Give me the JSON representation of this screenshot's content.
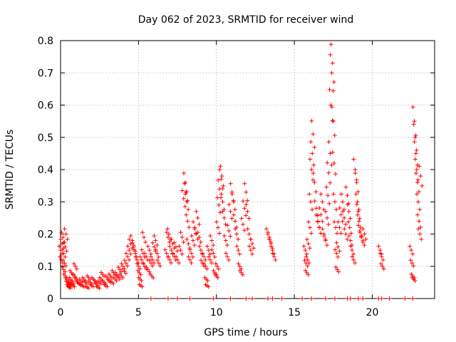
{
  "chart_data": {
    "type": "scatter",
    "title": "Day 062 of 2023, SRMTID for receiver wind",
    "xlabel": "GPS time / hours",
    "ylabel": "SRMTID / TECUs",
    "xlim": [
      0,
      24
    ],
    "ylim": [
      0,
      0.8
    ],
    "xticks": [
      0,
      5,
      10,
      15,
      20
    ],
    "yticks": [
      0,
      0.1,
      0.2,
      0.3,
      0.4,
      0.5,
      0.6,
      0.7,
      0.8
    ],
    "xtick_labels": [
      "0",
      "5",
      "10",
      "15",
      "20"
    ],
    "ytick_labels": [
      "0",
      "0.1",
      "0.2",
      "0.3",
      "0.4",
      "0.5",
      "0.6",
      "0.7",
      "0.8"
    ],
    "grid": true,
    "marker": "+",
    "series_color": "#ff0000",
    "points": [
      [
        0.0,
        0.15
      ],
      [
        0.05,
        0.12
      ],
      [
        0.1,
        0.17
      ],
      [
        0.15,
        0.19
      ],
      [
        0.2,
        0.14
      ],
      [
        0.25,
        0.11
      ],
      [
        0.3,
        0.16
      ],
      [
        0.35,
        0.2
      ],
      [
        0.2,
        0.09
      ],
      [
        0.3,
        0.07
      ],
      [
        0.4,
        0.06
      ],
      [
        0.45,
        0.05
      ],
      [
        0.5,
        0.04
      ],
      [
        0.55,
        0.035
      ],
      [
        0.6,
        0.045
      ],
      [
        0.65,
        0.06
      ],
      [
        0.7,
        0.08
      ],
      [
        0.75,
        0.05
      ],
      [
        0.8,
        0.04
      ],
      [
        0.9,
        0.07
      ],
      [
        0.95,
        0.1
      ],
      [
        1.0,
        0.06
      ],
      [
        1.1,
        0.05
      ],
      [
        1.2,
        0.045
      ],
      [
        1.3,
        0.055
      ],
      [
        1.4,
        0.04
      ],
      [
        1.5,
        0.06
      ],
      [
        1.6,
        0.05
      ],
      [
        1.7,
        0.035
      ],
      [
        1.8,
        0.065
      ],
      [
        1.9,
        0.05
      ],
      [
        2.0,
        0.04
      ],
      [
        2.1,
        0.06
      ],
      [
        2.2,
        0.055
      ],
      [
        2.3,
        0.045
      ],
      [
        2.4,
        0.035
      ],
      [
        2.5,
        0.05
      ],
      [
        2.6,
        0.06
      ],
      [
        2.7,
        0.075
      ],
      [
        2.8,
        0.05
      ],
      [
        2.9,
        0.04
      ],
      [
        3.0,
        0.065
      ],
      [
        3.1,
        0.055
      ],
      [
        3.2,
        0.07
      ],
      [
        3.3,
        0.05
      ],
      [
        3.4,
        0.08
      ],
      [
        3.5,
        0.06
      ],
      [
        3.6,
        0.075
      ],
      [
        3.7,
        0.065
      ],
      [
        3.8,
        0.09
      ],
      [
        3.9,
        0.07
      ],
      [
        4.0,
        0.1
      ],
      [
        4.1,
        0.085
      ],
      [
        4.2,
        0.11
      ],
      [
        4.3,
        0.13
      ],
      [
        4.4,
        0.15
      ],
      [
        4.5,
        0.17
      ],
      [
        4.6,
        0.18
      ],
      [
        4.7,
        0.16
      ],
      [
        4.8,
        0.14
      ],
      [
        4.9,
        0.12
      ],
      [
        5.0,
        0.1
      ],
      [
        5.05,
        0.08
      ],
      [
        5.1,
        0.06
      ],
      [
        5.15,
        0.04
      ],
      [
        5.2,
        0.12
      ],
      [
        5.3,
        0.14
      ],
      [
        5.35,
        0.19
      ],
      [
        5.4,
        0.1
      ],
      [
        5.5,
        0.13
      ],
      [
        5.6,
        0.09
      ],
      [
        5.7,
        0.15
      ],
      [
        5.8,
        0.11
      ],
      [
        5.85,
        0.07
      ],
      [
        5.9,
        0.12
      ],
      [
        6.0,
        0.16
      ],
      [
        6.1,
        0.18
      ],
      [
        6.2,
        0.14
      ],
      [
        6.3,
        0.11
      ],
      [
        6.8,
        0.14
      ],
      [
        6.9,
        0.19
      ],
      [
        6.95,
        0.2
      ],
      [
        7.0,
        0.12
      ],
      [
        7.1,
        0.15
      ],
      [
        7.2,
        0.17
      ],
      [
        7.3,
        0.13
      ],
      [
        7.4,
        0.16
      ],
      [
        7.5,
        0.12
      ],
      [
        7.7,
        0.15
      ],
      [
        7.8,
        0.19
      ],
      [
        7.9,
        0.31
      ],
      [
        8.0,
        0.36
      ],
      [
        8.05,
        0.33
      ],
      [
        8.1,
        0.3
      ],
      [
        8.15,
        0.24
      ],
      [
        8.2,
        0.17
      ],
      [
        8.3,
        0.12
      ],
      [
        8.4,
        0.14
      ],
      [
        8.5,
        0.18
      ],
      [
        8.6,
        0.22
      ],
      [
        8.7,
        0.2
      ],
      [
        8.8,
        0.25
      ],
      [
        8.9,
        0.19
      ],
      [
        9.0,
        0.15
      ],
      [
        9.1,
        0.11
      ],
      [
        9.2,
        0.13
      ],
      [
        9.3,
        0.1
      ],
      [
        9.35,
        0.06
      ],
      [
        9.4,
        0.04
      ],
      [
        9.5,
        0.15
      ],
      [
        9.6,
        0.12
      ],
      [
        9.7,
        0.18
      ],
      [
        9.8,
        0.14
      ],
      [
        9.9,
        0.08
      ],
      [
        10.0,
        0.07
      ],
      [
        10.05,
        0.1
      ],
      [
        10.1,
        0.22
      ],
      [
        10.15,
        0.29
      ],
      [
        10.2,
        0.34
      ],
      [
        10.3,
        0.37
      ],
      [
        10.35,
        0.38
      ],
      [
        10.4,
        0.3
      ],
      [
        10.5,
        0.25
      ],
      [
        10.6,
        0.18
      ],
      [
        10.7,
        0.13
      ],
      [
        10.8,
        0.21
      ],
      [
        10.9,
        0.27
      ],
      [
        11.0,
        0.33
      ],
      [
        11.1,
        0.3
      ],
      [
        11.2,
        0.24
      ],
      [
        11.3,
        0.2
      ],
      [
        11.4,
        0.15
      ],
      [
        11.5,
        0.1
      ],
      [
        11.6,
        0.08
      ],
      [
        11.7,
        0.23
      ],
      [
        11.8,
        0.28
      ],
      [
        11.9,
        0.33
      ],
      [
        12.0,
        0.27
      ],
      [
        12.1,
        0.2
      ],
      [
        12.2,
        0.15
      ],
      [
        12.3,
        0.17
      ],
      [
        13.3,
        0.2
      ],
      [
        13.4,
        0.19
      ],
      [
        13.5,
        0.17
      ],
      [
        13.6,
        0.15
      ],
      [
        13.7,
        0.13
      ],
      [
        15.7,
        0.15
      ],
      [
        15.75,
        0.11
      ],
      [
        15.8,
        0.08
      ],
      [
        15.85,
        0.12
      ],
      [
        15.9,
        0.17
      ],
      [
        16.0,
        0.22
      ],
      [
        16.05,
        0.3
      ],
      [
        16.1,
        0.4
      ],
      [
        16.15,
        0.45
      ],
      [
        16.2,
        0.51
      ],
      [
        16.3,
        0.36
      ],
      [
        16.4,
        0.28
      ],
      [
        16.5,
        0.24
      ],
      [
        16.6,
        0.22
      ],
      [
        16.7,
        0.26
      ],
      [
        16.8,
        0.3
      ],
      [
        16.9,
        0.2
      ],
      [
        17.0,
        0.18
      ],
      [
        17.1,
        0.25
      ],
      [
        17.15,
        0.32
      ],
      [
        17.2,
        0.39
      ],
      [
        17.3,
        0.45
      ],
      [
        17.35,
        0.6
      ],
      [
        17.4,
        0.7
      ],
      [
        17.45,
        0.73
      ],
      [
        17.5,
        0.55
      ],
      [
        17.55,
        0.42
      ],
      [
        17.6,
        0.3
      ],
      [
        17.65,
        0.22
      ],
      [
        17.7,
        0.14
      ],
      [
        17.75,
        0.09
      ],
      [
        17.8,
        0.16
      ],
      [
        17.9,
        0.22
      ],
      [
        18.0,
        0.26
      ],
      [
        18.1,
        0.3
      ],
      [
        18.2,
        0.25
      ],
      [
        18.3,
        0.2
      ],
      [
        18.4,
        0.32
      ],
      [
        18.5,
        0.27
      ],
      [
        18.55,
        0.22
      ],
      [
        18.6,
        0.18
      ],
      [
        18.7,
        0.15
      ],
      [
        18.8,
        0.12
      ],
      [
        18.9,
        0.4
      ],
      [
        19.0,
        0.36
      ],
      [
        19.05,
        0.3
      ],
      [
        19.1,
        0.27
      ],
      [
        19.15,
        0.24
      ],
      [
        19.2,
        0.21
      ],
      [
        19.3,
        0.19
      ],
      [
        19.4,
        0.18
      ],
      [
        19.5,
        0.2
      ],
      [
        20.5,
        0.15
      ],
      [
        20.6,
        0.13
      ],
      [
        20.65,
        0.1
      ],
      [
        22.5,
        0.15
      ],
      [
        22.55,
        0.11
      ],
      [
        22.6,
        0.07
      ],
      [
        22.65,
        0.06
      ],
      [
        22.7,
        0.55
      ],
      [
        22.75,
        0.5
      ],
      [
        22.8,
        0.45
      ],
      [
        22.85,
        0.4
      ],
      [
        22.9,
        0.36
      ],
      [
        22.95,
        0.3
      ],
      [
        23.0,
        0.24
      ],
      [
        23.05,
        0.2
      ],
      [
        23.1,
        0.38
      ]
    ],
    "zero_points_x": [
      5.8,
      6.9,
      7.5,
      8.3,
      9.8,
      10.9,
      11.9,
      12.3,
      13.3,
      13.6,
      14.2,
      15.5,
      16.1,
      17.0,
      17.6,
      18.4,
      18.6,
      19.1,
      19.4,
      20.4,
      20.6,
      21.1,
      22.1,
      22.6
    ]
  }
}
